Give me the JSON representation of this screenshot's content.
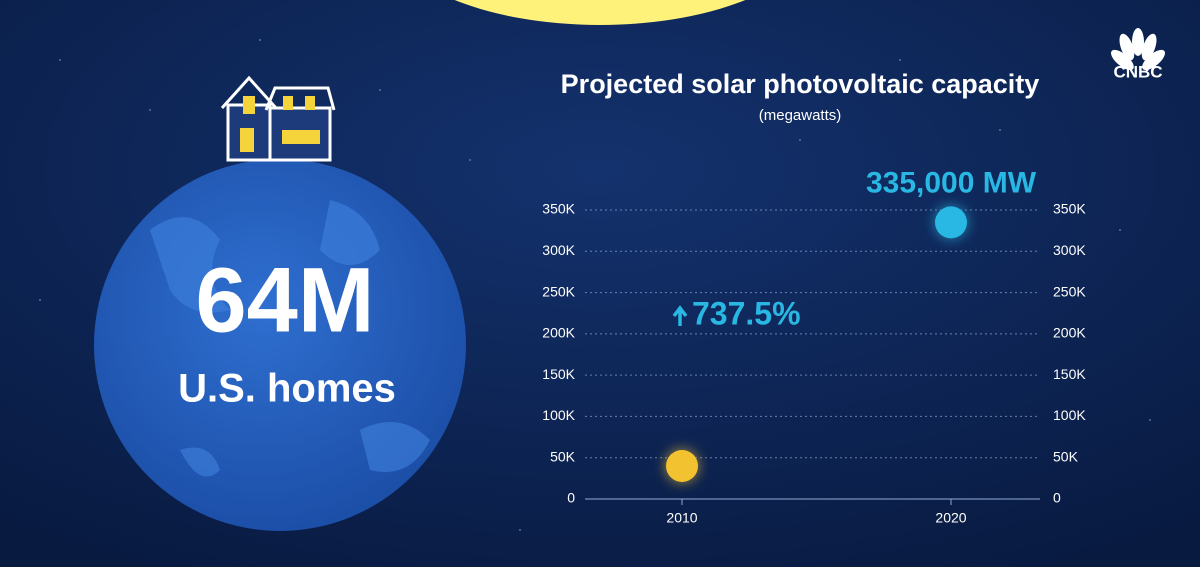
{
  "brand": "CNBC",
  "headline": {
    "number": "64M",
    "label": "U.S. homes"
  },
  "chart_data": {
    "type": "scatter",
    "title": "Projected solar photovoltaic capacity",
    "subtitle": "(megawatts)",
    "categories": [
      "2010",
      "2020"
    ],
    "values": [
      40000,
      335000
    ],
    "value_labels": [
      null,
      "335,000 MW"
    ],
    "colors": [
      "#f2c230",
      "#29b8e3"
    ],
    "annotation": "737.5%",
    "ylim": [
      0,
      350000
    ],
    "yticks": [
      0,
      {
        "value": 50000,
        "label": "50K"
      },
      {
        "value": 100000,
        "label": "100K"
      },
      {
        "value": 150000,
        "label": "150K"
      },
      {
        "value": 200000,
        "label": "200K"
      },
      {
        "value": 250000,
        "label": "250K"
      },
      {
        "value": 300000,
        "label": "300K"
      },
      {
        "value": 350000,
        "label": "350K"
      }
    ],
    "y2lim": [
      0,
      350000
    ],
    "y2ticks": [
      0,
      {
        "value": 50000,
        "label": "50K"
      },
      {
        "value": 100000,
        "label": "100K"
      },
      {
        "value": 150000,
        "label": "150K"
      },
      {
        "value": 200000,
        "label": "200K"
      },
      {
        "value": 250000,
        "label": "250K"
      },
      {
        "value": 300000,
        "label": "300K"
      },
      {
        "value": 350000,
        "label": "350K"
      }
    ],
    "grid": true
  }
}
